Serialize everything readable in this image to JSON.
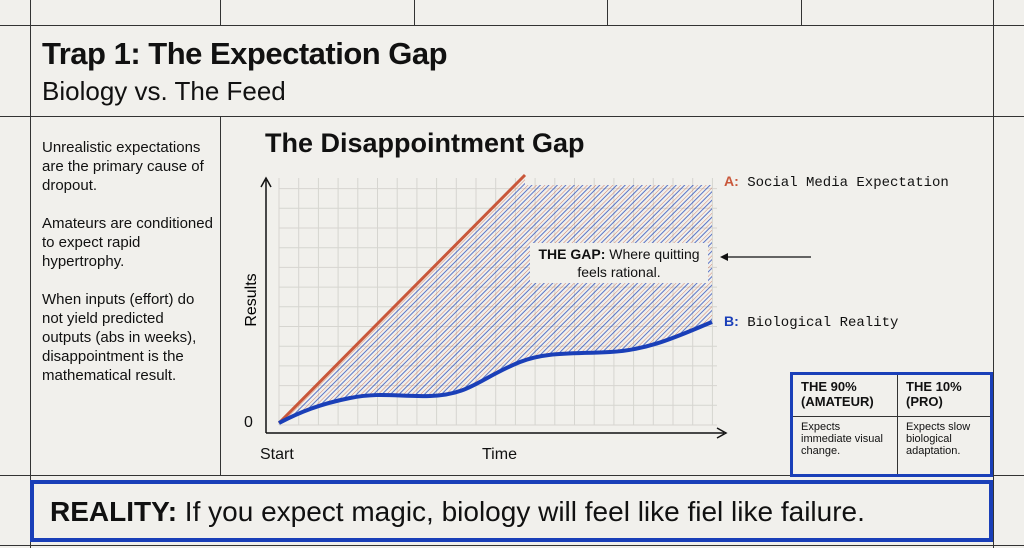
{
  "header": {
    "title": "Trap 1: The Expectation Gap",
    "subtitle": "Biology vs. The Feed"
  },
  "left_panel": {
    "paragraphs": [
      "Unrealistic expectations are the primary cause of dropout.",
      "Amateurs are conditioned to expect rapid hypertrophy.",
      "When inputs (effort) do not yield predicted outputs (abs in weeks), disappointment is the mathematical result."
    ]
  },
  "diagram": {
    "title": "The Disappointment Gap",
    "y_label": "Results",
    "y_origin_label": "0",
    "x_start_label": "Start",
    "x_label": "Time",
    "series_a": {
      "marker": "A:",
      "label": "Social Media Expectation",
      "color": "#c9573a"
    },
    "series_b": {
      "marker": "B:",
      "label": "Biological Reality",
      "color": "#1a3fb8"
    },
    "gap_annotation": {
      "bold": "THE GAP:",
      "text": " Where quitting feels rational."
    }
  },
  "comparison_table": {
    "headers": [
      "THE 90% (AMATEUR)",
      "THE 10% (PRO)"
    ],
    "cells": [
      "Expects immediate visual change.",
      "Expects slow biological adaptation."
    ]
  },
  "banner": {
    "bold": "REALITY:",
    "text": " If you expect magic, biology will feel like fiel like failure."
  },
  "colors": {
    "accent_blue": "#1a3fb8",
    "accent_red": "#c9573a",
    "background": "#f1f0ec"
  }
}
